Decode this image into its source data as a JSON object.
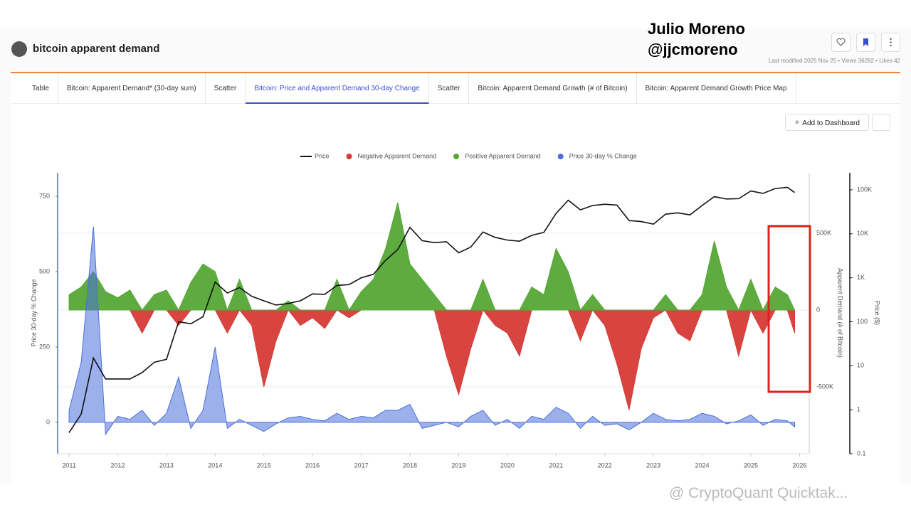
{
  "header": {
    "title": "bitcoin apparent demand",
    "meta": "Last modified 2025 Nov 25 • Views 36282 • Likes 42"
  },
  "annotation": {
    "author": "Julio Moreno",
    "handle": "@jjcmoreno"
  },
  "tabs": [
    "Table",
    "Bitcoin: Apparent Demand* (30-day sum)",
    "Scatter",
    "Bitcoin: Price and Apparent Demand 30-day Change",
    "Scatter",
    "Bitcoin: Apparent Demand Growth (# of Bitcoin)",
    "Bitcoin: Apparent Demand Growth Price Map"
  ],
  "active_tab": 3,
  "toolbar": {
    "add_button": "Add to Dashboard"
  },
  "watermark": "@ CryptoQuant Quicktak...",
  "chart_data": {
    "type": "line",
    "legend": "top",
    "x": [
      2011,
      2011.25,
      2011.5,
      2011.75,
      2012,
      2012.25,
      2012.5,
      2012.75,
      2013,
      2013.25,
      2013.5,
      2013.75,
      2014,
      2014.25,
      2014.5,
      2014.75,
      2015,
      2015.25,
      2015.5,
      2015.75,
      2016,
      2016.25,
      2016.5,
      2016.75,
      2017,
      2017.25,
      2017.5,
      2017.75,
      2018,
      2018.25,
      2018.5,
      2018.75,
      2019,
      2019.25,
      2019.5,
      2019.75,
      2020,
      2020.25,
      2020.5,
      2020.75,
      2021,
      2021.25,
      2021.5,
      2021.75,
      2022,
      2022.25,
      2022.5,
      2022.75,
      2023,
      2023.25,
      2023.5,
      2023.75,
      2024,
      2024.25,
      2024.5,
      2024.75,
      2025,
      2025.25,
      2025.5,
      2025.75,
      2025.9
    ],
    "xlim": [
      2010.78,
      2026.17
    ],
    "xticks": [
      2011,
      2012,
      2013,
      2014,
      2015,
      2016,
      2017,
      2018,
      2019,
      2020,
      2021,
      2022,
      2023,
      2024,
      2025,
      2026
    ],
    "y_label": "Price 30-day % Change",
    "ylim": [
      -104,
      828
    ],
    "yticks": [
      0,
      250,
      500,
      750
    ],
    "y2_label": "Apparent Demand (# of Bitcoin)",
    "y2lim": [
      -935000,
      893000
    ],
    "y2ticks": [
      {
        "value": -500000,
        "label": "-500K"
      },
      0,
      {
        "value": 500000,
        "label": "500K"
      }
    ],
    "y3_label": "Price ($)",
    "y3_log": true,
    "y3lim": [
      0.1,
      244000
    ],
    "y3ticks": [
      0.1,
      1,
      10,
      100,
      {
        "value": 1000,
        "label": "1K"
      },
      {
        "value": 10000,
        "label": "10K"
      },
      {
        "value": 100000,
        "label": "100K"
      }
    ],
    "grid": "y2",
    "series": [
      {
        "name": "Price",
        "color": "#111111",
        "type": "line",
        "axis": "y3",
        "values": [
          0.3,
          0.8,
          15,
          5,
          5,
          5,
          7,
          12,
          14,
          100,
          90,
          130,
          800,
          450,
          600,
          380,
          300,
          240,
          260,
          300,
          430,
          420,
          670,
          700,
          1000,
          1200,
          2500,
          4400,
          14000,
          7000,
          6300,
          6600,
          3700,
          5000,
          11000,
          8300,
          7200,
          6800,
          9200,
          10800,
          29000,
          58000,
          35000,
          44000,
          47000,
          45000,
          20000,
          19000,
          16600,
          28000,
          30000,
          27000,
          44000,
          70000,
          62000,
          63000,
          94000,
          83000,
          107000,
          114000,
          87000
        ]
      },
      {
        "name": "Negative Apparent Demand",
        "color": "#d63a36",
        "type": "area",
        "axis": "y2",
        "values": [
          0,
          0,
          0,
          0,
          0,
          0,
          -150000,
          0,
          0,
          -100000,
          0,
          0,
          0,
          -150000,
          0,
          -100000,
          -500000,
          -200000,
          0,
          -100000,
          -50000,
          -120000,
          0,
          -50000,
          0,
          0,
          0,
          0,
          0,
          0,
          0,
          -300000,
          -550000,
          -250000,
          0,
          -100000,
          -150000,
          -300000,
          0,
          0,
          0,
          0,
          -200000,
          0,
          -100000,
          -350000,
          -650000,
          -250000,
          -50000,
          0,
          -150000,
          -200000,
          0,
          0,
          0,
          -300000,
          0,
          -150000,
          0,
          0,
          -150000
        ]
      },
      {
        "name": "Positive Apparent Demand",
        "color": "#55a836",
        "type": "area",
        "axis": "y2",
        "values": [
          100000,
          150000,
          250000,
          120000,
          80000,
          130000,
          0,
          100000,
          130000,
          0,
          180000,
          300000,
          250000,
          0,
          200000,
          0,
          0,
          0,
          60000,
          0,
          0,
          0,
          200000,
          0,
          120000,
          200000,
          400000,
          700000,
          300000,
          200000,
          100000,
          0,
          0,
          0,
          200000,
          0,
          0,
          0,
          150000,
          100000,
          400000,
          250000,
          0,
          100000,
          0,
          0,
          0,
          0,
          0,
          100000,
          0,
          0,
          100000,
          450000,
          150000,
          0,
          200000,
          0,
          150000,
          100000,
          0
        ]
      },
      {
        "name": "Price 30-day % Change",
        "color": "#4a6fdc",
        "type": "area",
        "axis": "y",
        "values": [
          40,
          200,
          650,
          -40,
          20,
          10,
          40,
          -10,
          30,
          150,
          -20,
          40,
          250,
          -20,
          10,
          -10,
          -30,
          -5,
          15,
          20,
          10,
          5,
          30,
          10,
          20,
          15,
          40,
          40,
          60,
          -20,
          -10,
          0,
          -15,
          20,
          40,
          -10,
          10,
          -20,
          20,
          10,
          50,
          30,
          -20,
          20,
          -10,
          -5,
          -25,
          0,
          30,
          10,
          5,
          10,
          30,
          20,
          -5,
          5,
          25,
          -10,
          10,
          5,
          -15
        ]
      }
    ]
  }
}
